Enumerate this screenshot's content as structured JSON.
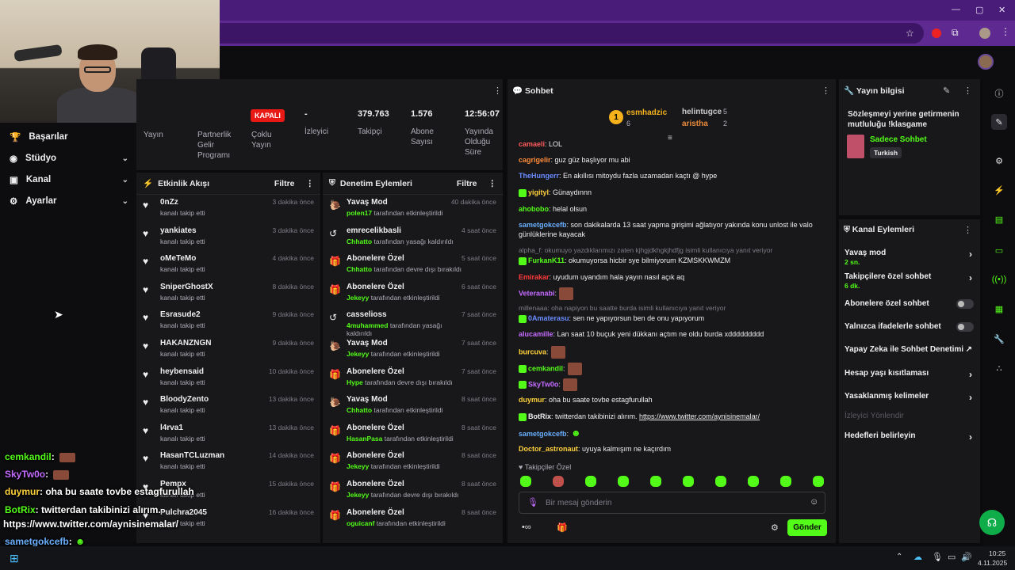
{
  "nav": {
    "items": [
      {
        "label": "Başarılar",
        "icon": "trophy-icon"
      },
      {
        "label": "Stüdyo",
        "icon": "studio-icon"
      },
      {
        "label": "Kanal",
        "icon": "channel-icon"
      },
      {
        "label": "Ayarlar",
        "icon": "gear-icon"
      }
    ]
  },
  "overlay_chat": [
    {
      "user": "cemkandil",
      "text": ":"
    },
    {
      "user": "SkyTw0o",
      "text": ":"
    },
    {
      "user": "duymur",
      "text": ": oha bu saate tovbe estagfurullah"
    },
    {
      "user": "BotRix",
      "text": ": twitterdan takibinizi alırım."
    },
    {
      "user": "",
      "text": "https://www.twitter.com/aynisinemalar/"
    },
    {
      "user": "sametgokcefb",
      "text": ":"
    },
    {
      "user": "Doctor_astronaut",
      "text": ": uyuya kalmışım ne kaçırdım"
    }
  ],
  "stats": {
    "yayin_label": "Yayın",
    "partner_label": "Partnerlik Gelir Programı",
    "multi_badge": "KAPALI",
    "multi_label": "Çoklu Yayın",
    "viewers_value": "-",
    "viewers_label": "İzleyici",
    "followers_value": "379.763",
    "followers_label": "Takipçi",
    "subs_value": "1.576",
    "subs_label": "Abone Sayısı",
    "uptime_value": "12:56:07",
    "uptime_label": "Yayında Olduğu Süre"
  },
  "activity": {
    "title": "Etkinlik Akışı",
    "filter": "Filtre",
    "rows": [
      {
        "name": "0nZz",
        "sub": "kanalı takip etti",
        "time": "3 dakika önce"
      },
      {
        "name": "yankiates",
        "sub": "kanalı takip etti",
        "time": "3 dakika önce"
      },
      {
        "name": "oMeTeMo",
        "sub": "kanalı takip etti",
        "time": "4 dakika önce"
      },
      {
        "name": "SniperGhostX",
        "sub": "kanalı takip etti",
        "time": "8 dakika önce"
      },
      {
        "name": "Esrasude2",
        "sub": "kanalı takip etti",
        "time": "9 dakika önce"
      },
      {
        "name": "HAKANZNGN",
        "sub": "kanalı takip etti",
        "time": "9 dakika önce"
      },
      {
        "name": "heybensaid",
        "sub": "kanalı takip etti",
        "time": "10 dakika önce"
      },
      {
        "name": "BloodyZento",
        "sub": "kanalı takip etti",
        "time": "13 dakika önce"
      },
      {
        "name": "l4rva1",
        "sub": "kanalı takip etti",
        "time": "13 dakika önce"
      },
      {
        "name": "HasanTCLuzman",
        "sub": "kanalı takip etti",
        "time": "14 dakika önce"
      },
      {
        "name": "Pempx",
        "sub": "kanalı takip etti",
        "time": "15 dakika önce"
      },
      {
        "name": "Pulchra2045",
        "sub": "kanalı takip etti",
        "time": "16 dakika önce"
      }
    ]
  },
  "moderation": {
    "title": "Denetim Eylemleri",
    "filter": "Filtre",
    "rows": [
      {
        "name": "Yavaş Mod",
        "actor": "polen17",
        "action": "tarafından etkinleştirildi",
        "time": "40 dakika önce",
        "icon": "slow-icon"
      },
      {
        "name": "emrecelikbasli",
        "actor": "Chhatto",
        "action": "tarafından yasağı kaldırıldı",
        "time": "4 saat önce",
        "icon": "undo-icon"
      },
      {
        "name": "Abonelere Özel",
        "actor": "Chhatto",
        "action": "tarafından devre dışı bırakıldı",
        "time": "5 saat önce",
        "icon": "gift-icon"
      },
      {
        "name": "Abonelere Özel",
        "actor": "Jekeyy",
        "action": "tarafından etkinleştirildi",
        "time": "6 saat önce",
        "icon": "gift-icon"
      },
      {
        "name": "casselioss",
        "actor": "4muhammed",
        "action": "tarafından yasağı kaldırıldı",
        "time": "7 saat önce",
        "icon": "undo-icon"
      },
      {
        "name": "Yavaş Mod",
        "actor": "Jekeyy",
        "action": "tarafından etkinleştirildi",
        "time": "7 saat önce",
        "icon": "slow-icon"
      },
      {
        "name": "Abonelere Özel",
        "actor": "Hype",
        "action": "tarafından devre dışı bırakıldı",
        "time": "7 saat önce",
        "icon": "gift-icon"
      },
      {
        "name": "Yavaş Mod",
        "actor": "Chhatto",
        "action": "tarafından etkinleştirildi",
        "time": "8 saat önce",
        "icon": "slow-icon"
      },
      {
        "name": "Abonelere Özel",
        "actor": "HasanPasa",
        "action": "tarafından etkinleştirildi",
        "time": "8 saat önce",
        "icon": "gift-icon"
      },
      {
        "name": "Abonelere Özel",
        "actor": "Jekeyy",
        "action": "tarafından etkinleştirildi",
        "time": "8 saat önce",
        "icon": "gift-icon"
      },
      {
        "name": "Abonelere Özel",
        "actor": "Jekeyy",
        "action": "tarafından devre dışı bırakıldı",
        "time": "8 saat önce",
        "icon": "gift-icon"
      },
      {
        "name": "Abonelere Özel",
        "actor": "oguicanf",
        "action": "tarafından etkinleştirildi",
        "time": "8 saat önce",
        "icon": "gift-icon"
      }
    ]
  },
  "chat": {
    "title": "Sohbet",
    "leaders": [
      {
        "rank": "1",
        "name": "esmhadzic",
        "count": "6"
      },
      {
        "name": "helintugce",
        "count": "5"
      },
      {
        "name": "aristha",
        "count": "2"
      }
    ],
    "messages": [
      {
        "user": "camaeli",
        "color": "#ff5a5a",
        "text": ": LOL"
      },
      {
        "user": "cagrigelir",
        "color": "#ff8c3a",
        "text": ": guz güz başlıyor mu abi"
      },
      {
        "user": "TheHungerr",
        "color": "#6a8cff",
        "text": ": En akıllısı mitoydu fazla uzamadan kaçtı @ hype"
      },
      {
        "user": "yigityl",
        "color": "#ffd23a",
        "text": ": Günaydınnn"
      },
      {
        "user": "ahobobo",
        "color": "#53fc18",
        "text": ": helal olsun"
      },
      {
        "user": "sametgokcefb",
        "color": "#6ab0ff",
        "text": ": son dakikalarda 13 saat yapma girişimi ağlatıyor yakında konu unlost ile valo günlüklerine kayacak"
      },
      {
        "reply": "alpha_f: okumuyo yazdıklarımızı zaten kjhgjdkhgkjhdfjg isimli kullanıcıya yanıt veriyor"
      },
      {
        "user": "FurkanK11",
        "color": "#53fc18",
        "text": ": okumuyorsa hicbir sye bilmiyorum KZMSKKWMZM"
      },
      {
        "user": "Emirakar",
        "color": "#ff3a3a",
        "text": ": uyudum uyandım hala yayın nasıl açık aq"
      },
      {
        "user": "Veteranabi",
        "color": "#c46bff",
        "text": ":"
      },
      {
        "reply": "millenaaa: oha napiyon bu saatte burda isimli kullanıcıya yanıt veriyor"
      },
      {
        "user": "0Amaterasu",
        "color": "#6a8cff",
        "text": ": sen ne yapıyorsun ben de onu yapıyorum"
      },
      {
        "user": "alucamille",
        "color": "#c46bff",
        "text": ": Lan saat 10 buçuk yeni dükkanı açtım ne oldu burda xddddddddd"
      },
      {
        "user": "burcuva",
        "color": "#ffd23a",
        "text": ":"
      },
      {
        "user": "cemkandil",
        "color": "#53fc18",
        "text": ":"
      },
      {
        "user": "SkyTw0o",
        "color": "#c46bff",
        "text": ":"
      },
      {
        "user": "duymur",
        "color": "#ffd23a",
        "text": ": oha bu saate tovbe estagfurullah"
      },
      {
        "user": "BotRix",
        "color": "#efeff1",
        "text": ": twitterdan takibinizi alırım. ",
        "link": "https://www.twitter.com/aynisinemalar/"
      },
      {
        "user": "sametgokcefb",
        "color": "#6ab0ff",
        "text": ":"
      },
      {
        "user": "Doctor_astronaut",
        "color": "#ffd23a",
        "text": ": uyuya kalmışım ne kaçırdım"
      }
    ],
    "followers_label": "Takipçiler Özel",
    "input_placeholder": "Bir mesaj gönderin",
    "send_label": "Gönder"
  },
  "stream_info": {
    "title": "Yayın bilgisi",
    "stream_title": "Sözleşmeyi yerine getirmenin mutluluğu !klasgame",
    "category": "Sadece Sohbet",
    "language": "Turkish"
  },
  "channel_actions": {
    "title": "Kanal Eylemleri",
    "rows": [
      {
        "label": "Yavaş mod",
        "sub": "2 sn.",
        "type": "chevron"
      },
      {
        "label": "Takipçilere özel sohbet",
        "sub": "6 dk.",
        "type": "chevron"
      },
      {
        "label": "Abonelere özel sohbet",
        "type": "toggle"
      },
      {
        "label": "Yalnızca ifadelerle sohbet",
        "type": "toggle"
      },
      {
        "label": "Yapay Zeka ile Sohbet Denetimi",
        "type": "external"
      },
      {
        "label": "Hesap yaşı kısıtlaması",
        "type": "chevron"
      },
      {
        "label": "Yasaklanmış kelimeler",
        "type": "chevron"
      },
      {
        "label": "İzleyici Yönlendir",
        "type": "disabled"
      },
      {
        "label": "Hedefleri belirleyin",
        "type": "chevron"
      }
    ]
  },
  "taskbar": {
    "time": "10:25",
    "date": "4.11.2025"
  },
  "colors": {
    "accent": "#53fc18",
    "panel": "#18181b",
    "bg": "#0b0b0d",
    "browser": "#5e2a91"
  }
}
